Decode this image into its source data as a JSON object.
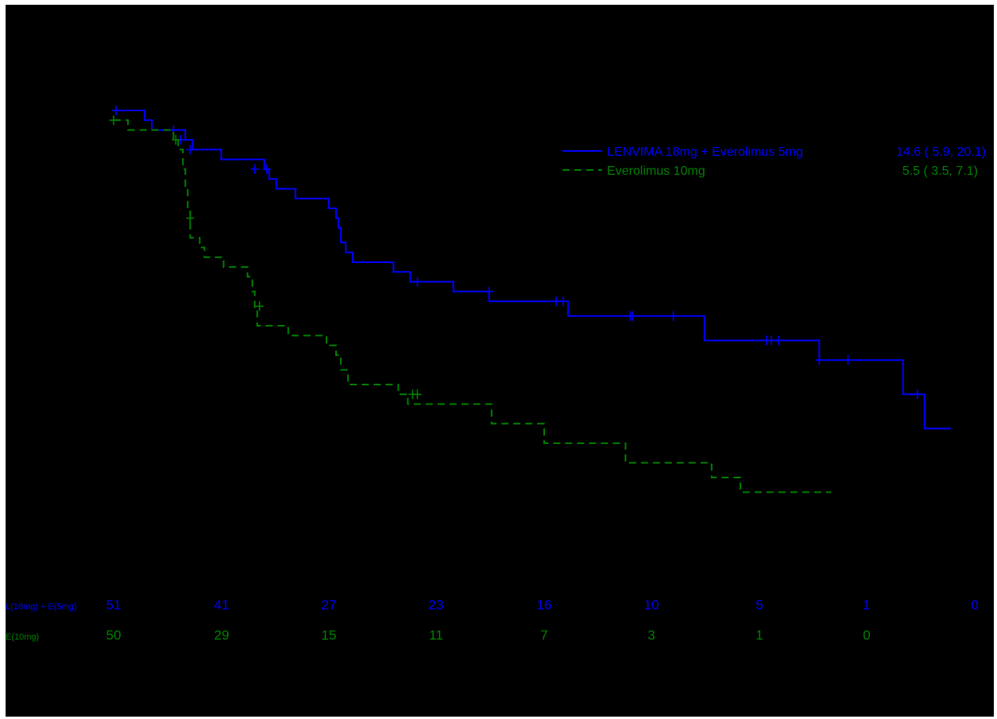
{
  "colors": {
    "background": "#000000",
    "lenvima": "#0000ff",
    "everolimus": "#008000"
  },
  "chart_data": {
    "type": "line",
    "subtype": "kaplan-meier",
    "title": "",
    "xlabel": "",
    "ylabel": "",
    "xlim": [
      0,
      36
    ],
    "ylim": [
      0,
      1
    ],
    "grid": false,
    "legend_position": "top-right",
    "series": [
      {
        "name": "LENVIMA 18mg + Everolimus 5mg",
        "summary": "14.6 ( 5.9, 20.1)",
        "style": "solid",
        "color": "#0000ff",
        "steps": [
          [
            0,
            1.0
          ],
          [
            1.3,
            0.98
          ],
          [
            1.6,
            0.96
          ],
          [
            3.0,
            0.94
          ],
          [
            3.3,
            0.92
          ],
          [
            4.5,
            0.9
          ],
          [
            6.3,
            0.88
          ],
          [
            6.5,
            0.86
          ],
          [
            6.8,
            0.84
          ],
          [
            7.6,
            0.82
          ],
          [
            9.0,
            0.8
          ],
          [
            9.3,
            0.78
          ],
          [
            9.4,
            0.76
          ],
          [
            9.5,
            0.73
          ],
          [
            9.7,
            0.71
          ],
          [
            10.0,
            0.69
          ],
          [
            11.7,
            0.67
          ],
          [
            12.4,
            0.65
          ],
          [
            14.2,
            0.63
          ],
          [
            15.7,
            0.61
          ],
          [
            19.0,
            0.58
          ],
          [
            24.7,
            0.53
          ],
          [
            29.5,
            0.49
          ],
          [
            33.0,
            0.42
          ],
          [
            33.9,
            0.35
          ],
          [
            35.0,
            0.35
          ]
        ],
        "censored": [
          [
            0.1,
            1.0
          ],
          [
            2.5,
            0.96
          ],
          [
            2.8,
            0.94
          ],
          [
            3.2,
            0.92
          ],
          [
            5.9,
            0.88
          ],
          [
            6.4,
            0.88
          ],
          [
            12.7,
            0.65
          ],
          [
            15.7,
            0.63
          ],
          [
            18.5,
            0.61
          ],
          [
            18.8,
            0.61
          ],
          [
            21.6,
            0.58
          ],
          [
            21.7,
            0.58
          ],
          [
            23.4,
            0.58
          ],
          [
            27.3,
            0.53
          ],
          [
            27.5,
            0.53
          ],
          [
            27.8,
            0.53
          ],
          [
            29.5,
            0.49
          ],
          [
            30.7,
            0.49
          ],
          [
            33.6,
            0.42
          ]
        ]
      },
      {
        "name": "Everolimus 10mg",
        "summary": "5.5 ( 3.5,  7.1)",
        "style": "dashed",
        "color": "#008000",
        "steps": [
          [
            0,
            0.98
          ],
          [
            0.6,
            0.96
          ],
          [
            2.5,
            0.94
          ],
          [
            2.7,
            0.92
          ],
          [
            2.9,
            0.88
          ],
          [
            3.0,
            0.84
          ],
          [
            3.1,
            0.8
          ],
          [
            3.2,
            0.74
          ],
          [
            3.6,
            0.72
          ],
          [
            3.8,
            0.7
          ],
          [
            4.6,
            0.68
          ],
          [
            5.6,
            0.66
          ],
          [
            5.8,
            0.63
          ],
          [
            5.9,
            0.59
          ],
          [
            6.0,
            0.56
          ],
          [
            7.3,
            0.54
          ],
          [
            8.9,
            0.52
          ],
          [
            9.3,
            0.5
          ],
          [
            9.5,
            0.47
          ],
          [
            9.8,
            0.44
          ],
          [
            11.9,
            0.42
          ],
          [
            12.3,
            0.4
          ],
          [
            15.8,
            0.36
          ],
          [
            18.0,
            0.32
          ],
          [
            21.4,
            0.28
          ],
          [
            25.0,
            0.25
          ],
          [
            26.2,
            0.22
          ],
          [
            30.0,
            0.22
          ]
        ],
        "censored": [
          [
            0.0,
            0.98
          ],
          [
            2.6,
            0.94
          ],
          [
            3.2,
            0.78
          ],
          [
            6.1,
            0.6
          ],
          [
            12.5,
            0.42
          ],
          [
            12.7,
            0.42
          ]
        ]
      }
    ]
  },
  "legend": {
    "entries": [
      {
        "label": "LENVIMA 18mg + Everolimus 5mg",
        "summary": "14.6 ( 5.9, 20.1)"
      },
      {
        "label": "Everolimus 10mg",
        "summary": "5.5 ( 3.5,  7.1)"
      }
    ]
  },
  "risk_table": {
    "rows": [
      {
        "label": "L(18mg) + E(5mg)",
        "counts": [
          "51",
          "41",
          "27",
          "23",
          "16",
          "10",
          "5",
          "1",
          "0"
        ]
      },
      {
        "label": "E(10mg)",
        "counts": [
          "50",
          "29",
          "15",
          "11",
          "7",
          "3",
          "1",
          "0"
        ]
      }
    ]
  }
}
